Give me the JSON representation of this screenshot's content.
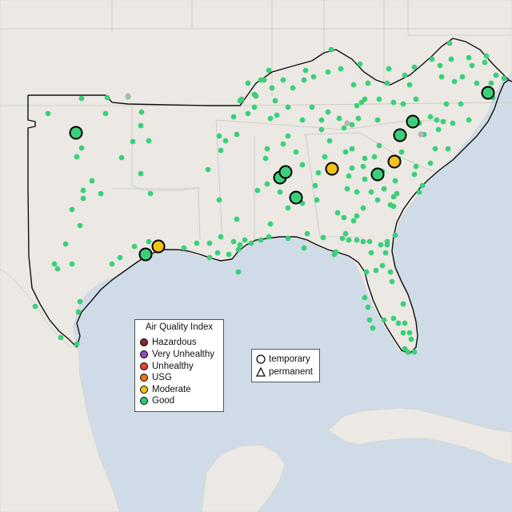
{
  "legend": {
    "title": "Air Quality Index",
    "categories": [
      {
        "label": "Hazardous",
        "color": "#7e2a2a"
      },
      {
        "label": "Very Unhealthy",
        "color": "#8f4fb0"
      },
      {
        "label": "Unhealthy",
        "color": "#e8432f"
      },
      {
        "label": "USG",
        "color": "#e8781e"
      },
      {
        "label": "Moderate",
        "color": "#f2c21b"
      },
      {
        "label": "Good",
        "color": "#2ecc71"
      }
    ]
  },
  "shape_legend": {
    "temporary": "temporary",
    "permanent": "permanent"
  },
  "colors": {
    "water": "#cfdce8",
    "land": "#ece9e4",
    "good": "#3ccf7a",
    "moderate": "#f2c21b",
    "no_data": "#b5b5b5"
  }
}
